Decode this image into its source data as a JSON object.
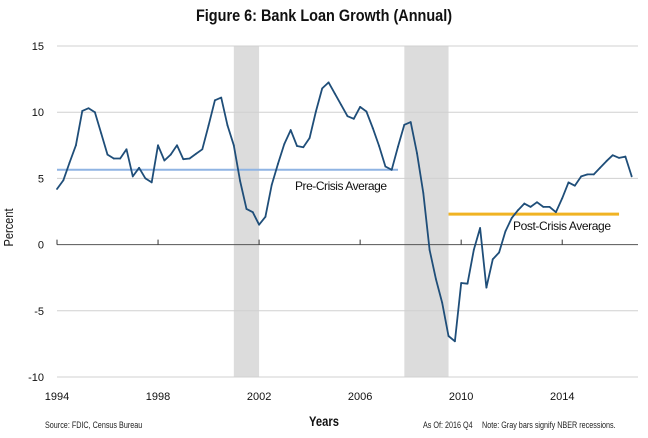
{
  "chart_data": {
    "type": "line",
    "title": "Figure 6: Bank Loan Growth (Annual)",
    "xlabel": "Years",
    "ylabel": "Percent",
    "xlim": [
      1994,
      2017
    ],
    "ylim": [
      -10,
      15
    ],
    "x_ticks": [
      "1994",
      "1998",
      "2002",
      "2006",
      "2010",
      "2014"
    ],
    "y_ticks": [
      "15",
      "10",
      "5",
      "0",
      "-5",
      "-10"
    ],
    "grid": true,
    "series": [
      {
        "color": "#1f4e79",
        "x": [
          1994,
          1994.25,
          1994.5,
          1994.75,
          1995,
          1995.25,
          1995.5,
          1995.75,
          1996,
          1996.25,
          1996.5,
          1996.75,
          1997,
          1997.25,
          1997.5,
          1997.75,
          1998,
          1998.25,
          1998.5,
          1998.75,
          1999,
          1999.25,
          1999.5,
          1999.75,
          2000,
          2000.25,
          2000.5,
          2000.75,
          2001,
          2001.25,
          2001.5,
          2001.75,
          2002,
          2002.25,
          2002.5,
          2002.75,
          2003,
          2003.25,
          2003.5,
          2003.75,
          2004,
          2004.25,
          2004.5,
          2004.75,
          2005,
          2005.25,
          2005.5,
          2005.75,
          2006,
          2006.25,
          2006.5,
          2006.75,
          2007,
          2007.25,
          2007.5,
          2007.75,
          2008,
          2008.25,
          2008.5,
          2008.75,
          2009,
          2009.25,
          2009.5,
          2009.75,
          2010,
          2010.25,
          2010.5,
          2010.75,
          2011,
          2011.25,
          2011.5,
          2011.75,
          2012,
          2012.25,
          2012.5,
          2012.75,
          2013,
          2013.25,
          2013.5,
          2013.75,
          2014,
          2014.25,
          2014.5,
          2014.75,
          2015,
          2015.25,
          2015.5,
          2015.75,
          2016,
          2016.25,
          2016.5,
          2016.75
        ],
        "values": [
          4.2,
          4.85,
          6.2,
          7.5,
          10.1,
          10.3,
          10.0,
          8.4,
          6.8,
          6.5,
          6.5,
          7.2,
          5.15,
          5.8,
          5.0,
          4.7,
          7.5,
          6.35,
          6.8,
          7.5,
          6.45,
          6.5,
          6.85,
          7.2,
          9.0,
          10.9,
          11.1,
          9.0,
          7.5,
          4.8,
          2.7,
          2.45,
          1.5,
          2.1,
          4.5,
          6.1,
          7.6,
          8.65,
          7.45,
          7.35,
          8.05,
          10.05,
          11.8,
          12.25,
          11.4,
          10.55,
          9.7,
          9.5,
          10.4,
          10.05,
          8.8,
          7.45,
          5.9,
          5.65,
          7.4,
          9.05,
          9.25,
          6.9,
          3.9,
          -0.4,
          -2.6,
          -4.4,
          -6.9,
          -7.3,
          -2.9,
          -2.95,
          -0.4,
          1.25,
          -3.25,
          -1.1,
          -0.6,
          1.0,
          2.0,
          2.6,
          3.1,
          2.85,
          3.2,
          2.85,
          2.85,
          2.45,
          3.5,
          4.7,
          4.45,
          5.15,
          5.3,
          5.3,
          5.8,
          6.3,
          6.75,
          6.55,
          6.65,
          5.15
        ]
      }
    ],
    "recessions": [
      [
        2001.0,
        2002.0
      ],
      [
        2007.75,
        2009.5
      ]
    ],
    "recession_color": "#dcdcdc",
    "averages": [
      {
        "label": "Pre-Crisis Average",
        "value": 5.65,
        "x_range": [
          1994,
          2007.5
        ],
        "color": "#8fb4e3"
      },
      {
        "label": "Post-Crisis Average",
        "value": 2.3,
        "x_range": [
          2009.5,
          2016.25
        ],
        "color": "#f0b323"
      }
    ]
  },
  "footer": {
    "source": "Source: FDIC, Census Bureau",
    "as_of": "As Of: 2016 Q4",
    "note": "Note: Gray bars signify NBER recessions."
  }
}
